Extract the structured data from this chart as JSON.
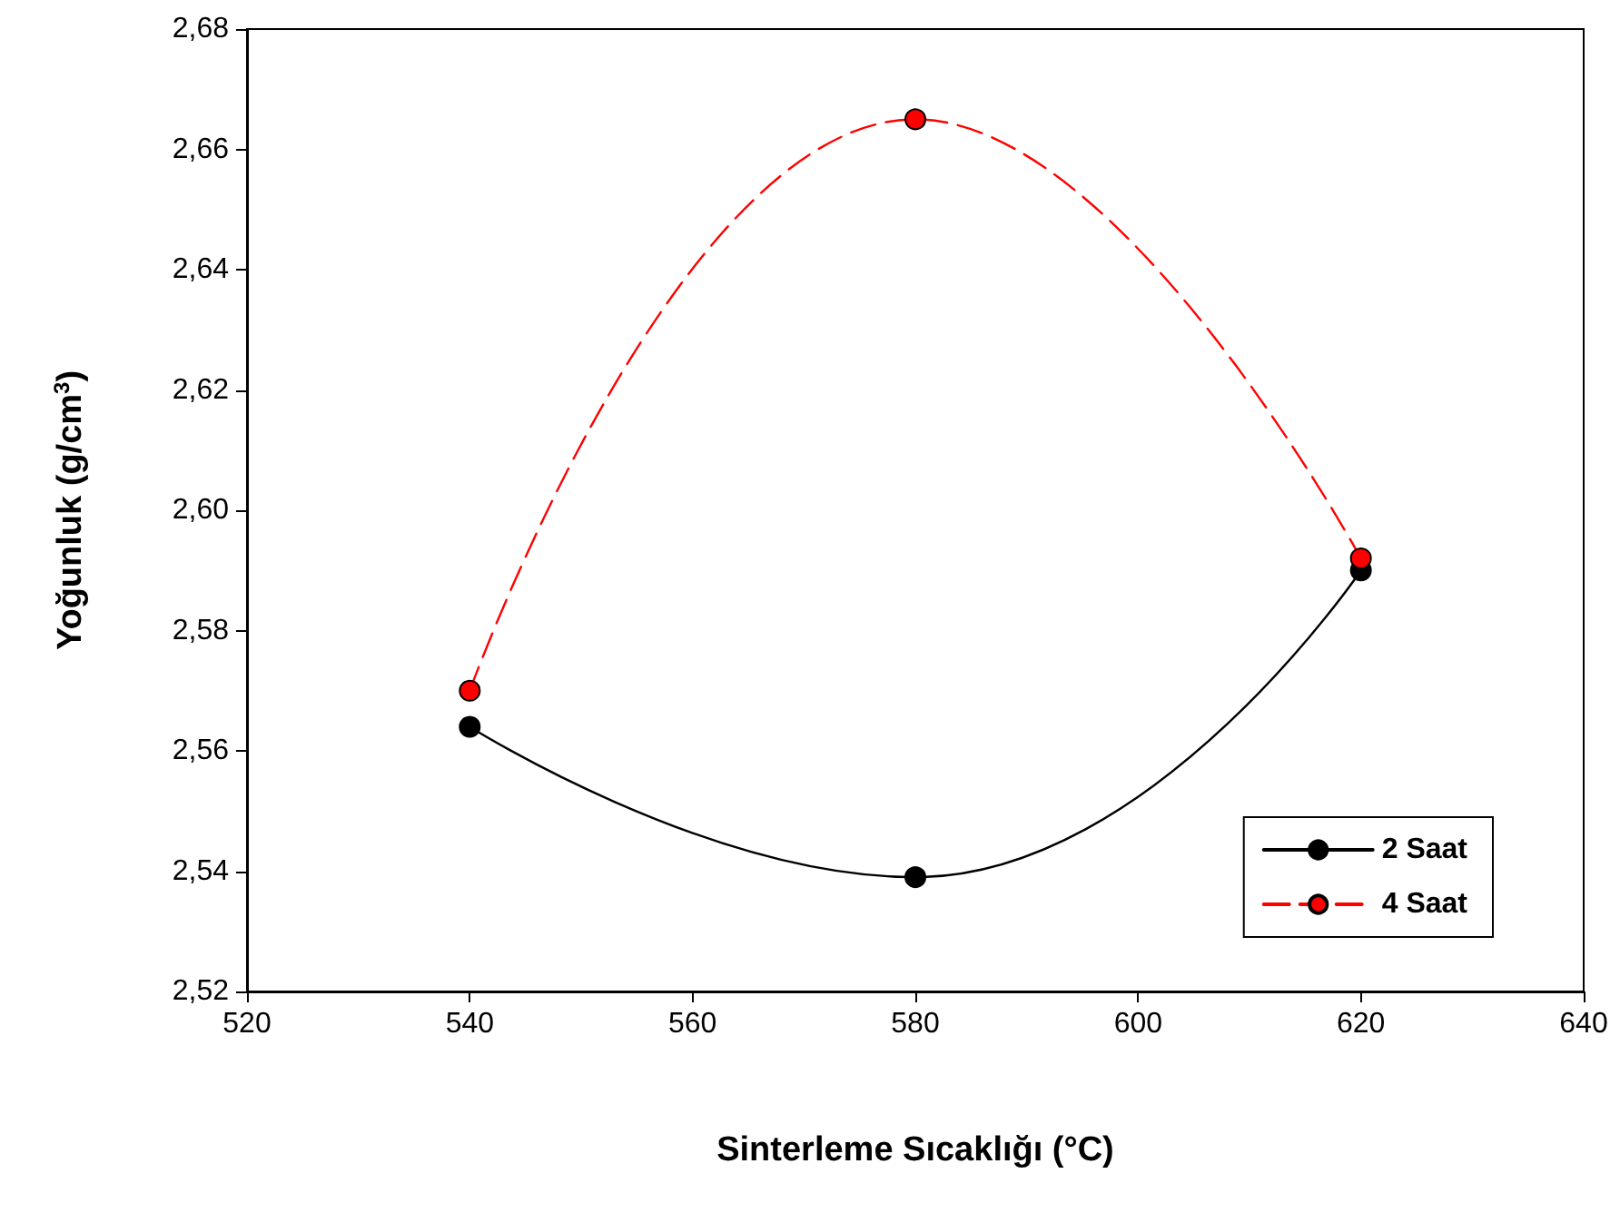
{
  "chart_data": {
    "type": "line",
    "xlabel": "Sinterleme Sıcaklığı (°C)",
    "ylabel": "Yoğunluk (g/cm$^{3}$)",
    "x": [
      540,
      580,
      620
    ],
    "series": [
      {
        "name": "2 Saat",
        "color": "#000000",
        "values": [
          2.564,
          2.539,
          2.59
        ],
        "line_style": "solid"
      },
      {
        "name": "4 Saat",
        "color": "#ff0000",
        "values": [
          2.57,
          2.665,
          2.592
        ],
        "line_style": "dashed"
      }
    ],
    "xlim": [
      520,
      640
    ],
    "xticks": [
      520,
      540,
      560,
      580,
      600,
      620,
      640
    ],
    "ylim": [
      2.52,
      2.68
    ],
    "yticks": [
      {
        "value": 2.52,
        "label": "2,52"
      },
      {
        "value": 2.54,
        "label": "2,54"
      },
      {
        "value": 2.56,
        "label": "2,56"
      },
      {
        "value": 2.58,
        "label": "2,58"
      },
      {
        "value": 2.6,
        "label": "2,60"
      },
      {
        "value": 2.62,
        "label": "2,62"
      },
      {
        "value": 2.64,
        "label": "2,64"
      },
      {
        "value": 2.66,
        "label": "2,66"
      },
      {
        "value": 2.68,
        "label": "2,68"
      }
    ],
    "legend": "bottom right",
    "marker": "circle",
    "grid": false
  }
}
